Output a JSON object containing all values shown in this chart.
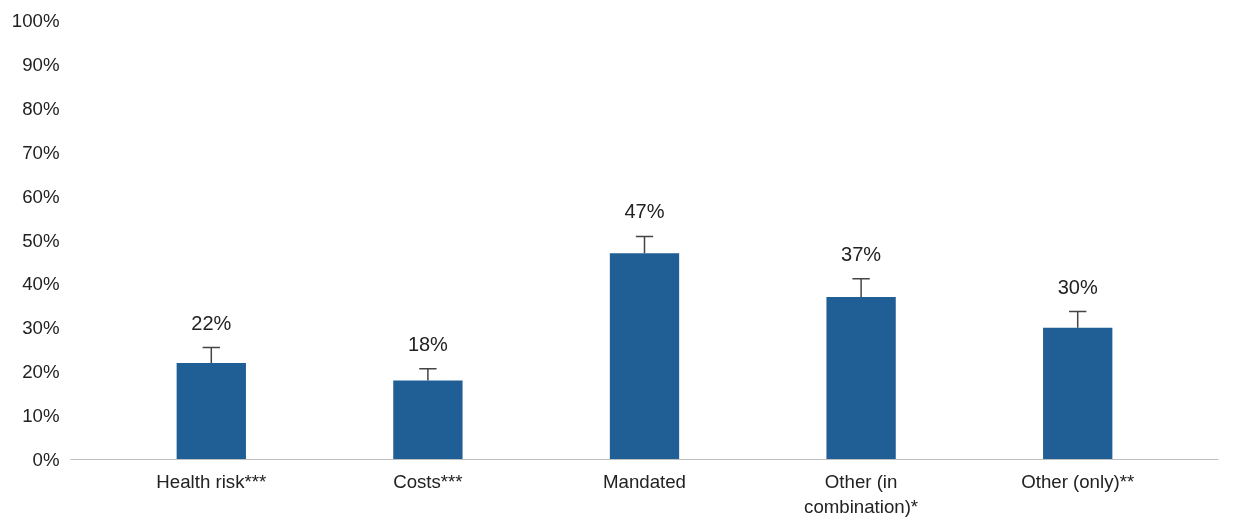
{
  "chart_data": {
    "type": "bar",
    "categories": [
      "Health risk***",
      "Costs***",
      "Mandated",
      "Other (in combination)*",
      "Other (only)**"
    ],
    "values": [
      22,
      18,
      47,
      37,
      30
    ],
    "errors": [
      [
        22,
        25.5
      ],
      [
        18,
        20.7
      ],
      [
        47,
        50.8
      ],
      [
        37,
        41.2
      ],
      [
        30,
        33.7
      ]
    ],
    "value_labels": [
      "22%",
      "18%",
      "47%",
      "37%",
      "30%"
    ],
    "color": "#1f5f95",
    "ylim": [
      0,
      100
    ],
    "yticks": [
      {
        "value": 0,
        "label": "0%"
      },
      {
        "value": 10,
        "label": "10%"
      },
      {
        "value": 20,
        "label": "20%"
      },
      {
        "value": 30,
        "label": "30%"
      },
      {
        "value": 40,
        "label": "40%"
      },
      {
        "value": 50,
        "label": "50%"
      },
      {
        "value": 60,
        "label": "60%"
      },
      {
        "value": 70,
        "label": "70%"
      },
      {
        "value": 80,
        "label": "80%"
      },
      {
        "value": 90,
        "label": "90%"
      },
      {
        "value": 100,
        "label": "100%"
      }
    ],
    "grid": false
  }
}
